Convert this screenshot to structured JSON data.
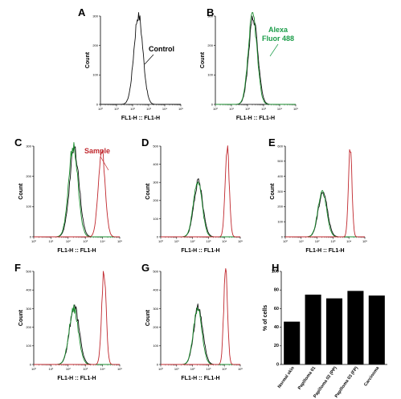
{
  "colors": {
    "control": "#111111",
    "alexa": "#1a8c2e",
    "sample": "#c0272d",
    "bar": "#000000",
    "annot_alexa": "#1a9c48",
    "annot_sample": "#c0272d"
  },
  "chart_data": [
    {
      "type": "histogram",
      "panel": "A",
      "xlabel": "FL1-H :: FL1-H",
      "ylabel": "Count",
      "x_scale": "log",
      "xlim": [
        1,
        100000
      ],
      "ylim": [
        0,
        300
      ],
      "y_ticks": [
        0,
        100,
        200,
        300
      ],
      "x_ticks": [
        "10⁰",
        "10¹",
        "10²",
        "10³",
        "10⁴",
        "10⁵"
      ],
      "series": [
        {
          "color": "#111111",
          "peak_x": 230,
          "peak_y": 305,
          "width_decades": 0.28
        }
      ],
      "annotations": [
        {
          "text": "Control",
          "color": "#000000"
        }
      ]
    },
    {
      "type": "histogram",
      "panel": "B",
      "xlabel": "FL1-H :: FL1-H",
      "ylabel": "Count",
      "x_scale": "log",
      "xlim": [
        1,
        100000
      ],
      "ylim": [
        0,
        300
      ],
      "y_ticks": [
        0,
        100,
        200,
        300
      ],
      "x_ticks": [
        "10⁰",
        "10¹",
        "10²",
        "10³",
        "10⁴",
        "10⁵"
      ],
      "series": [
        {
          "color": "#111111",
          "peak_x": 230,
          "peak_y": 295,
          "width_decades": 0.28
        },
        {
          "color": "#1a8c2e",
          "peak_x": 210,
          "peak_y": 305,
          "width_decades": 0.27
        }
      ],
      "annotations": [
        {
          "text": "Alexa",
          "color": "#1a9c48"
        },
        {
          "text": "Fluor 488",
          "color": "#1a9c48"
        }
      ]
    },
    {
      "type": "histogram",
      "panel": "C",
      "xlabel": "FL1-H :: FL1-H",
      "ylabel": "Count",
      "x_scale": "log",
      "xlim": [
        1,
        100000
      ],
      "ylim": [
        0,
        300
      ],
      "y_ticks": [
        0,
        100,
        200,
        300
      ],
      "x_ticks": [
        "10⁰",
        "10¹",
        "10²",
        "10³",
        "10⁴",
        "10⁵"
      ],
      "series": [
        {
          "color": "#111111",
          "peak_x": 230,
          "peak_y": 290,
          "width_decades": 0.28
        },
        {
          "color": "#1a8c2e",
          "peak_x": 200,
          "peak_y": 300,
          "width_decades": 0.27
        },
        {
          "color": "#c0272d",
          "peak_x": 9000,
          "peak_y": 280,
          "width_decades": 0.2
        }
      ],
      "annotations": [
        {
          "text": "Sample",
          "color": "#c0272d"
        }
      ]
    },
    {
      "type": "histogram",
      "panel": "D",
      "xlabel": "FL1-H :: FL1-H",
      "ylabel": "Count",
      "x_scale": "log",
      "xlim": [
        1,
        100000
      ],
      "ylim": [
        0,
        500
      ],
      "y_ticks": [
        0,
        100,
        200,
        300,
        400,
        500
      ],
      "x_ticks": [
        "10⁰",
        "10¹",
        "10²",
        "10³",
        "10⁴",
        "10⁵"
      ],
      "series": [
        {
          "color": "#111111",
          "peak_x": 230,
          "peak_y": 300,
          "width_decades": 0.28
        },
        {
          "color": "#1a8c2e",
          "peak_x": 210,
          "peak_y": 310,
          "width_decades": 0.27
        },
        {
          "color": "#c0272d",
          "peak_x": 15000,
          "peak_y": 500,
          "width_decades": 0.13
        }
      ]
    },
    {
      "type": "histogram",
      "panel": "E",
      "xlabel": "FL1-H :: FL1-H",
      "ylabel": "Count",
      "x_scale": "log",
      "xlim": [
        1,
        100000
      ],
      "ylim": [
        0,
        600
      ],
      "y_ticks": [
        0,
        100,
        200,
        300,
        400,
        500,
        600
      ],
      "x_ticks": [
        "10⁰",
        "10¹",
        "10²",
        "10³",
        "10⁴",
        "10⁵"
      ],
      "series": [
        {
          "color": "#111111",
          "peak_x": 230,
          "peak_y": 300,
          "width_decades": 0.28
        },
        {
          "color": "#1a8c2e",
          "peak_x": 210,
          "peak_y": 300,
          "width_decades": 0.27
        },
        {
          "color": "#c0272d",
          "peak_x": 12000,
          "peak_y": 600,
          "width_decades": 0.11
        }
      ]
    },
    {
      "type": "histogram",
      "panel": "F",
      "xlabel": "FL1-H :: FL1-H",
      "ylabel": "Count",
      "x_scale": "log",
      "xlim": [
        1,
        100000
      ],
      "ylim": [
        0,
        500
      ],
      "y_ticks": [
        0,
        100,
        200,
        300,
        400,
        500
      ],
      "x_ticks": [
        "10⁰",
        "10¹",
        "10²",
        "10³",
        "10⁴",
        "10⁵"
      ],
      "series": [
        {
          "color": "#111111",
          "peak_x": 230,
          "peak_y": 310,
          "width_decades": 0.28
        },
        {
          "color": "#1a8c2e",
          "peak_x": 210,
          "peak_y": 300,
          "width_decades": 0.27
        },
        {
          "color": "#c0272d",
          "peak_x": 12000,
          "peak_y": 500,
          "width_decades": 0.13
        }
      ]
    },
    {
      "type": "histogram",
      "panel": "G",
      "xlabel": "FL1-H :: FL1-H",
      "ylabel": "Count",
      "x_scale": "log",
      "xlim": [
        1,
        100000
      ],
      "ylim": [
        0,
        500
      ],
      "y_ticks": [
        0,
        100,
        200,
        300,
        400,
        500
      ],
      "x_ticks": [
        "10⁰",
        "10¹",
        "10²",
        "10³",
        "10⁴",
        "10⁵"
      ],
      "series": [
        {
          "color": "#111111",
          "peak_x": 230,
          "peak_y": 310,
          "width_decades": 0.28
        },
        {
          "color": "#1a8c2e",
          "peak_x": 210,
          "peak_y": 300,
          "width_decades": 0.27
        },
        {
          "color": "#c0272d",
          "peak_x": 12000,
          "peak_y": 510,
          "width_decades": 0.12
        }
      ]
    },
    {
      "type": "bar",
      "panel": "H",
      "ylabel": "% of cells",
      "ylim": [
        0,
        100
      ],
      "y_ticks": [
        0,
        20,
        40,
        60,
        80,
        100
      ],
      "categories": [
        "Normal skin",
        "Papilloma 01",
        "Papilloma 02 (PP)",
        "Papilloma 03 (FP)",
        "Carcinoma"
      ],
      "values": [
        46,
        75,
        71,
        79,
        74
      ]
    }
  ]
}
